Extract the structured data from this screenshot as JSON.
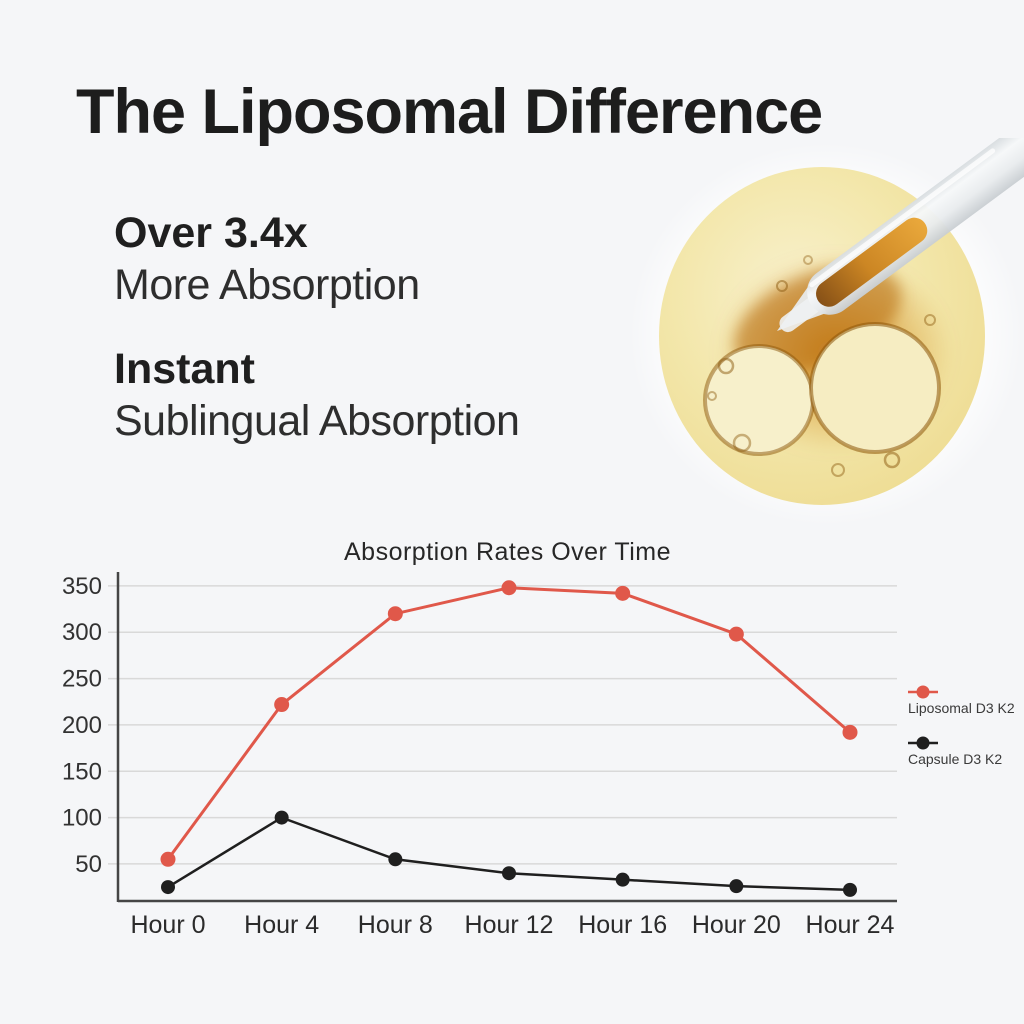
{
  "page": {
    "background": "#f5f6f8"
  },
  "header": {
    "title": "The Liposomal Difference"
  },
  "features": [
    {
      "headline": "Over 3.4x",
      "subline": "More Absorption"
    },
    {
      "headline": "Instant",
      "subline": "Sublingual Absorption"
    }
  ],
  "photo": {
    "name": "oil-droplet-with-glass-pipette"
  },
  "chart_data": {
    "type": "line",
    "title": "Absorption Rates Over Time",
    "categories": [
      "Hour 0",
      "Hour 4",
      "Hour 8",
      "Hour 12",
      "Hour 16",
      "Hour 20",
      "Hour 24"
    ],
    "series": [
      {
        "name": "Liposomal D3 K2",
        "color": "#e0584a",
        "values": [
          55,
          222,
          320,
          348,
          342,
          298,
          192
        ]
      },
      {
        "name": "Capsule D3 K2",
        "color": "#1f1f1f",
        "values": [
          25,
          100,
          55,
          40,
          33,
          26,
          22
        ]
      }
    ],
    "yticks": [
      50,
      100,
      150,
      200,
      250,
      300,
      350
    ],
    "ylim": [
      10,
      365
    ],
    "xlabel": "",
    "ylabel": "",
    "grid": true,
    "legend_position": "right",
    "axis_color": "#454545",
    "grid_color": "#d9d9d9"
  }
}
